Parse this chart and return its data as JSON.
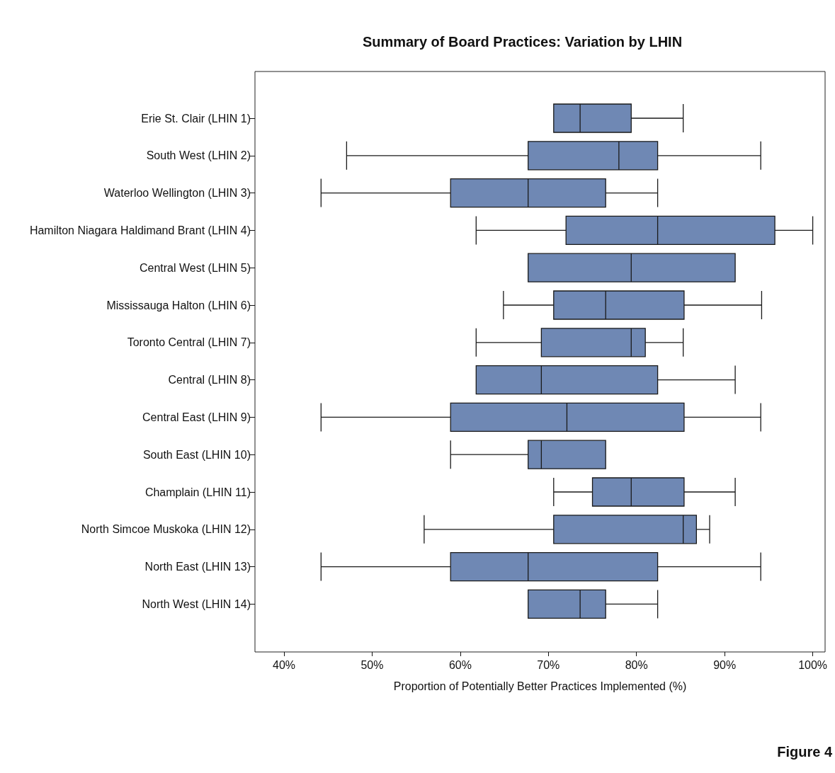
{
  "chart_data": {
    "type": "box",
    "orientation": "horizontal",
    "title": "Summary of Board Practices: Variation by LHIN",
    "xlabel": "Proportion of Potentially Better Practices Implemented (%)",
    "categories": [
      "Erie St. Clair (LHIN 1)",
      "South West (LHIN 2)",
      "Waterloo Wellington (LHIN 3)",
      "Hamilton Niagara Haldimand Brant (LHIN 4)",
      "Central West (LHIN 5)",
      "Mississauga Halton (LHIN 6)",
      "Toronto Central (LHIN 7)",
      "Central (LHIN 8)",
      "Central East (LHIN 9)",
      "South East (LHIN 10)",
      "Champlain (LHIN 11)",
      "North Simcoe Muskoka (LHIN 12)",
      "North East (LHIN 13)",
      "North West (LHIN 14)"
    ],
    "color": "#6f88b4",
    "boxes": [
      {
        "low": 70.6,
        "q1": 70.6,
        "median": 73.6,
        "q3": 79.4,
        "high": 85.3
      },
      {
        "low": 47.1,
        "q1": 67.7,
        "median": 78.0,
        "q3": 82.4,
        "high": 94.1
      },
      {
        "low": 44.2,
        "q1": 58.9,
        "median": 67.7,
        "q3": 76.5,
        "high": 82.4
      },
      {
        "low": 61.8,
        "q1": 72.0,
        "median": 82.4,
        "q3": 95.7,
        "high": 100
      },
      {
        "low": 67.7,
        "q1": 67.7,
        "median": 79.4,
        "q3": 91.2,
        "high": 91.2
      },
      {
        "low": 64.9,
        "q1": 70.6,
        "median": 76.5,
        "q3": 85.4,
        "high": 94.2
      },
      {
        "low": 61.8,
        "q1": 69.2,
        "median": 79.4,
        "q3": 81.0,
        "high": 85.3
      },
      {
        "low": 61.8,
        "q1": 61.8,
        "median": 69.2,
        "q3": 82.4,
        "high": 91.2
      },
      {
        "low": 44.2,
        "q1": 58.9,
        "median": 72.1,
        "q3": 85.4,
        "high": 94.1
      },
      {
        "low": 58.9,
        "q1": 67.7,
        "median": 69.2,
        "q3": 76.5,
        "high": 76.5
      },
      {
        "low": 70.6,
        "q1": 75.0,
        "median": 79.4,
        "q3": 85.4,
        "high": 91.2
      },
      {
        "low": 55.9,
        "q1": 70.6,
        "median": 85.3,
        "q3": 86.8,
        "high": 88.3
      },
      {
        "low": 44.2,
        "q1": 58.9,
        "median": 67.7,
        "q3": 82.4,
        "high": 94.1
      },
      {
        "low": 67.7,
        "q1": 67.7,
        "median": 73.6,
        "q3": 76.5,
        "high": 82.4
      }
    ],
    "xlim": [
      36.7,
      101.4
    ],
    "xticks": [
      {
        "value": 40,
        "label": "40%"
      },
      {
        "value": 50,
        "label": "50%"
      },
      {
        "value": 60,
        "label": "60%"
      },
      {
        "value": 70,
        "label": "70%"
      },
      {
        "value": 80,
        "label": "80%"
      },
      {
        "value": 90,
        "label": "90%"
      },
      {
        "value": 100,
        "label": "100%"
      }
    ],
    "annotations": [
      "Figure 4"
    ]
  }
}
